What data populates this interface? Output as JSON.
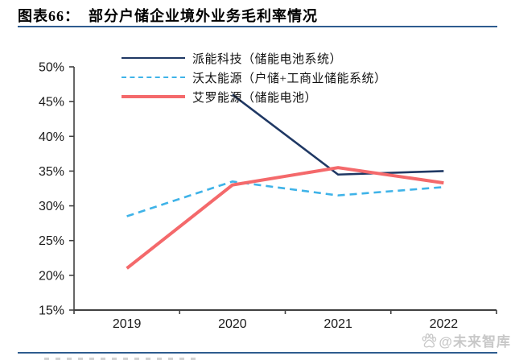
{
  "header": {
    "title": "图表66：  部分户储企业境外业务毛利率情况"
  },
  "theme": {
    "rule_color": "#2e5c8f",
    "axis_color": "#404040",
    "tick_label_color": "#1a1a1a",
    "background": "#ffffff",
    "watermark_color": "#c8c8c8"
  },
  "watermark": {
    "icon": "baidu-paw-icon",
    "text": "@未来智库"
  },
  "chart_data": {
    "type": "line",
    "title": "部分户储企业境外业务毛利率情况",
    "figure_label": "图表66",
    "categories": [
      "2019",
      "2020",
      "2021",
      "2022"
    ],
    "series": [
      {
        "name": "派能科技（储能电池系统）",
        "values": [
          null,
          46.0,
          34.5,
          35.0
        ],
        "color": "#1f3864",
        "line_style": "solid",
        "line_width": 2.6
      },
      {
        "name": "沃太能源（户储+工商业储能系统）",
        "values": [
          28.5,
          33.5,
          31.5,
          32.7
        ],
        "color": "#3fb3e8",
        "line_style": "dashed",
        "line_width": 2.6
      },
      {
        "name": "艾罗能源（储能电池）",
        "values": [
          21.0,
          33.0,
          35.5,
          33.3
        ],
        "color": "#f4696b",
        "line_style": "solid",
        "line_width": 4
      }
    ],
    "xlabel": "",
    "ylabel": "",
    "ylim": [
      15,
      50
    ],
    "ytick_step": 5,
    "ytick_suffix": "%",
    "grid": false,
    "legend_position": "top-left-inside"
  }
}
